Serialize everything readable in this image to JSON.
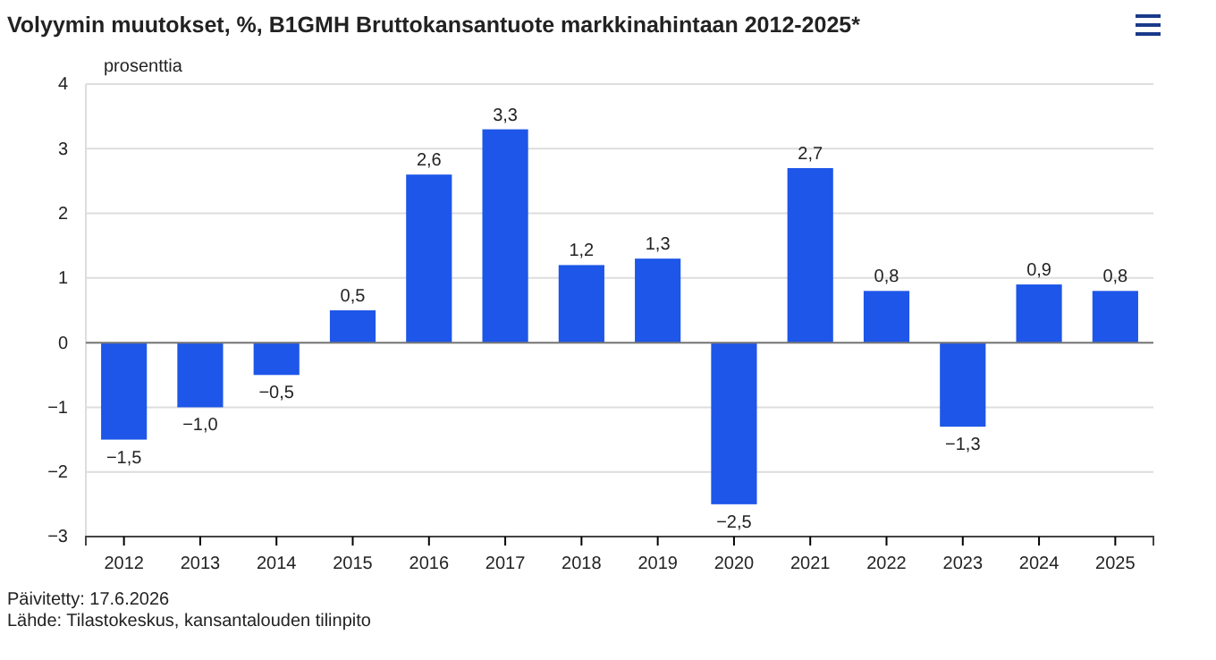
{
  "chart_data": {
    "type": "bar",
    "title": "Volyymin muutokset, %, B1GMH Bruttokansantuote markkinahintaan 2012-2025*",
    "ylabel": "prosenttia",
    "categories": [
      "2012",
      "2013",
      "2014",
      "2015",
      "2016",
      "2017",
      "2018",
      "2019",
      "2020",
      "2021",
      "2022",
      "2023",
      "2024",
      "2025"
    ],
    "values": [
      -1.5,
      -1.0,
      -0.5,
      0.5,
      2.6,
      3.3,
      1.2,
      1.3,
      -2.5,
      2.7,
      0.8,
      -1.3,
      0.9,
      0.8
    ],
    "value_labels": [
      "−1,5",
      "−1,0",
      "−0,5",
      "0,5",
      "2,6",
      "3,3",
      "1,2",
      "1,3",
      "−2,5",
      "2,7",
      "0,8",
      "−1,3",
      "0,9",
      "0,8"
    ],
    "color": "#1d56e8",
    "ylim": [
      -3,
      4
    ],
    "yticks": [
      {
        "value": -3,
        "label": "−3"
      },
      {
        "value": -2,
        "label": "−2"
      },
      {
        "value": -1,
        "label": "−1"
      },
      0,
      1,
      2,
      3,
      4
    ],
    "grid": "y",
    "annotations": [
      "Päivitetty: 17.6.2026",
      "Lähde: Tilastokeskus, kansantalouden tilinpito"
    ]
  }
}
